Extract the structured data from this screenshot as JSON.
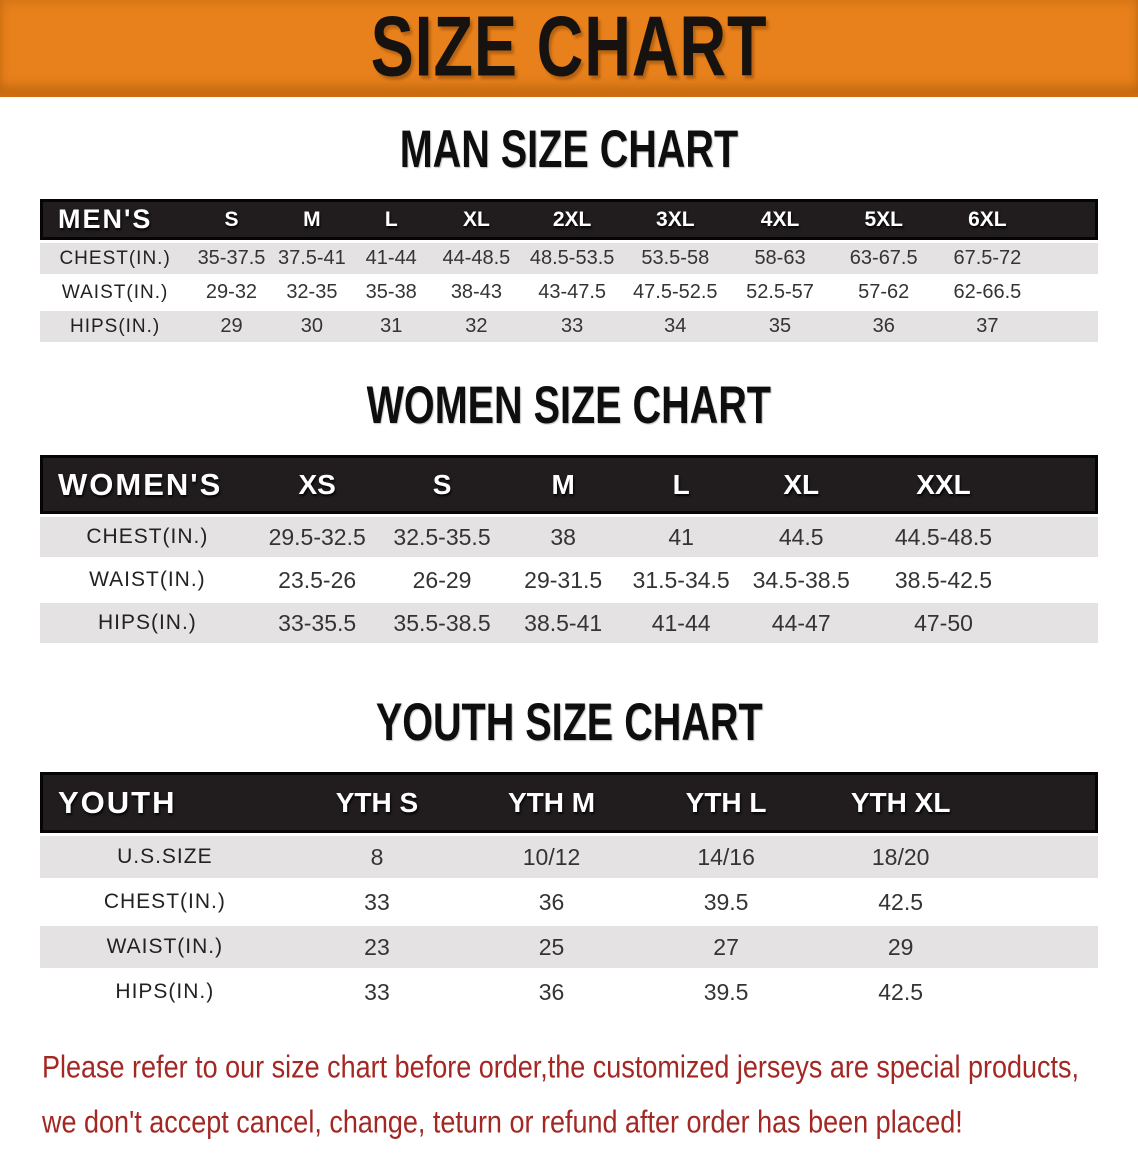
{
  "banner": {
    "title": "SIZE CHART",
    "background_color": "#e8811b",
    "text_color": "#161210"
  },
  "sections": [
    {
      "heading": "MAN SIZE CHART",
      "table": {
        "label_header": "MEN'S",
        "columns": [
          "S",
          "M",
          "L",
          "XL",
          "2XL",
          "3XL",
          "4XL",
          "5XL",
          "6XL"
        ],
        "rows": [
          {
            "label": "CHEST(IN.)",
            "values": [
              "35-37.5",
              "37.5-41",
              "41-44",
              "44-48.5",
              "48.5-53.5",
              "53.5-58",
              "58-63",
              "63-67.5",
              "67.5-72"
            ]
          },
          {
            "label": "WAIST(IN.)",
            "values": [
              "29-32",
              "32-35",
              "35-38",
              "38-43",
              "43-47.5",
              "47.5-52.5",
              "52.5-57",
              "57-62",
              "62-66.5"
            ]
          },
          {
            "label": "HIPS(IN.)",
            "values": [
              "29",
              "30",
              "31",
              "32",
              "33",
              "34",
              "35",
              "36",
              "37"
            ]
          }
        ]
      }
    },
    {
      "heading": "WOMEN SIZE CHART",
      "table": {
        "label_header": "WOMEN'S",
        "columns": [
          "XS",
          "S",
          "M",
          "L",
          "XL",
          "XXL"
        ],
        "rows": [
          {
            "label": "CHEST(IN.)",
            "values": [
              "29.5-32.5",
              "32.5-35.5",
              "38",
              "41",
              "44.5",
              "44.5-48.5"
            ]
          },
          {
            "label": "WAIST(IN.)",
            "values": [
              "23.5-26",
              "26-29",
              "29-31.5",
              "31.5-34.5",
              "34.5-38.5",
              "38.5-42.5"
            ]
          },
          {
            "label": "HIPS(IN.)",
            "values": [
              "33-35.5",
              "35.5-38.5",
              "38.5-41",
              "41-44",
              "44-47",
              "47-50"
            ]
          }
        ]
      }
    },
    {
      "heading": "YOUTH SIZE CHART",
      "table": {
        "label_header": "YOUTH",
        "columns": [
          "YTH S",
          "YTH M",
          "YTH L",
          "YTH XL"
        ],
        "rows": [
          {
            "label": "U.S.SIZE",
            "values": [
              "8",
              "10/12",
              "14/16",
              "18/20"
            ]
          },
          {
            "label": "CHEST(IN.)",
            "values": [
              "33",
              "36",
              "39.5",
              "42.5"
            ]
          },
          {
            "label": "WAIST(IN.)",
            "values": [
              "23",
              "25",
              "27",
              "29"
            ]
          },
          {
            "label": "HIPS(IN.)",
            "values": [
              "33",
              "36",
              "39.5",
              "42.5"
            ]
          }
        ]
      }
    }
  ],
  "footer": {
    "color": "#a32723",
    "lines": [
      "Please refer to our size chart before order,the customized jerseys are special products,",
      "we don't accept cancel, change, teturn or refund after order has been placed!"
    ]
  }
}
